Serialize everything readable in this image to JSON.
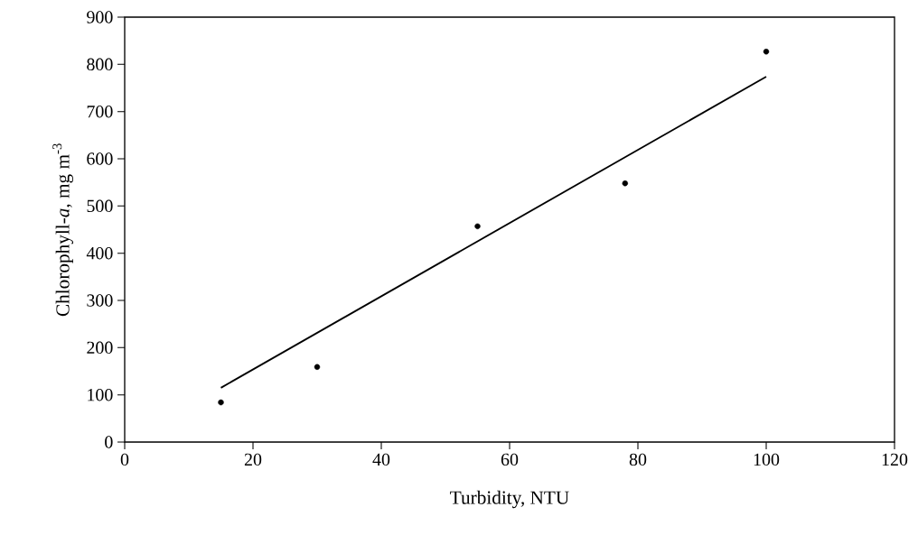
{
  "chart_data": {
    "type": "scatter",
    "xlabel": "Turbidity, NTU",
    "ylabel": "Chlorophyll-*a*, mg m$^{-3}$",
    "series": [
      {
        "color": "#000000",
        "marker": "circle",
        "x": [
          15,
          30,
          55,
          78,
          100
        ],
        "values": [
          84,
          159,
          457,
          548,
          827
        ]
      },
      {
        "type": "line",
        "color": "#000000",
        "line_style": "solid",
        "x": [
          15,
          100
        ],
        "values": [
          115,
          774
        ]
      }
    ],
    "xlim": [
      0,
      120
    ],
    "ylim": [
      0,
      900
    ],
    "xticks": [
      0,
      20,
      40,
      60,
      80,
      100,
      120
    ],
    "yticks": [
      0,
      100,
      200,
      300,
      400,
      500,
      600,
      700,
      800,
      900
    ],
    "grid": false
  }
}
